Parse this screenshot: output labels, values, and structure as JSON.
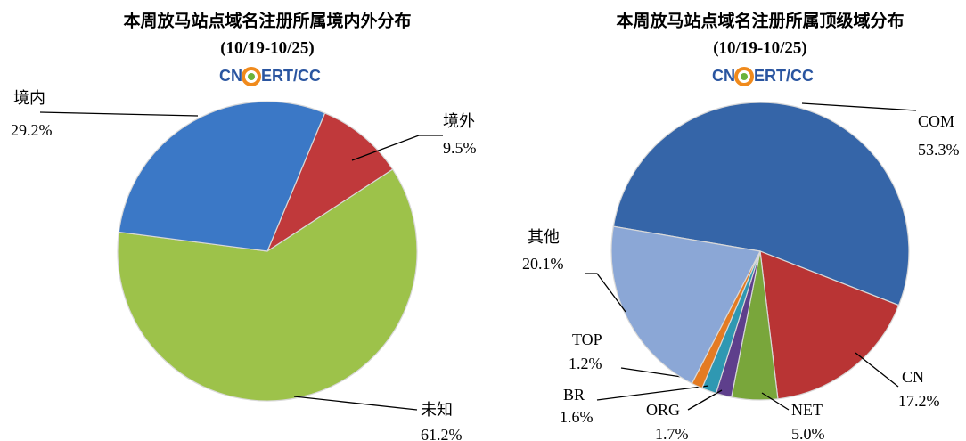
{
  "chart_data": [
    {
      "type": "pie",
      "title": "本周放马站点域名注册所属境内外分布",
      "subtitle": "(10/19-10/25)",
      "logo": {
        "left": "CN",
        "right": "ERT/CC"
      },
      "categories": [
        "境外",
        "未知",
        "境内"
      ],
      "values": [
        9.5,
        61.2,
        29.2
      ],
      "value_labels": [
        "9.5%",
        "61.2%",
        "29.2%"
      ],
      "colors": [
        "#c0393b",
        "#9dc24a",
        "#3b78c6"
      ]
    },
    {
      "type": "pie",
      "title": "本周放马站点域名注册所属顶级域分布",
      "subtitle": "(10/19-10/25)",
      "logo": {
        "left": "CN",
        "right": "ERT/CC"
      },
      "categories": [
        "COM",
        "CN",
        "NET",
        "ORG",
        "BR",
        "TOP",
        "其他"
      ],
      "values": [
        53.3,
        17.2,
        5.0,
        1.7,
        1.6,
        1.2,
        20.1
      ],
      "value_labels": [
        "53.3%",
        "17.2%",
        "5.0%",
        "1.7%",
        "1.6%",
        "1.2%",
        "20.1%"
      ],
      "colors": [
        "#3565a8",
        "#b93434",
        "#79a63b",
        "#5e3f8c",
        "#2f98b2",
        "#e47b22",
        "#8ba7d6"
      ]
    }
  ]
}
